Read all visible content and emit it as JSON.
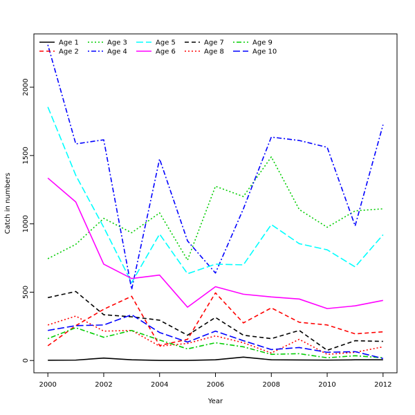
{
  "chart_data": {
    "type": "line",
    "title": "",
    "xlabel": "Year",
    "ylabel": "Catch in numbers",
    "xlim": [
      1999.5,
      2012.5
    ],
    "ylim": [
      -90,
      2390
    ],
    "x_ticks": [
      2000,
      2002,
      2004,
      2006,
      2008,
      2010,
      2012
    ],
    "y_ticks": [
      0,
      500,
      1000,
      1500,
      2000
    ],
    "grid": false,
    "legend_position": "top-left",
    "x": [
      2000,
      2001,
      2002,
      2003,
      2004,
      2005,
      2006,
      2007,
      2008,
      2009,
      2010,
      2011,
      2012
    ],
    "series": [
      {
        "name": "Age 1",
        "color": "#000000",
        "dash": "solid",
        "values": [
          2,
          3,
          18,
          5,
          1,
          1,
          5,
          25,
          5,
          4,
          3,
          5,
          5
        ]
      },
      {
        "name": "Age 2",
        "color": "#ff0000",
        "dash": "dashed",
        "values": [
          108,
          255,
          375,
          470,
          110,
          155,
          495,
          275,
          385,
          280,
          260,
          195,
          210
        ]
      },
      {
        "name": "Age 3",
        "color": "#00cd00",
        "dash": "dotted",
        "values": [
          745,
          850,
          1040,
          935,
          1080,
          735,
          1275,
          1200,
          1490,
          1105,
          975,
          1095,
          1110
        ]
      },
      {
        "name": "Age 4",
        "color": "#0000ff",
        "dash": "dotdash",
        "values": [
          2310,
          1585,
          1615,
          520,
          1475,
          875,
          640,
          1110,
          1635,
          1610,
          1560,
          985,
          1725
        ]
      },
      {
        "name": "Age 5",
        "color": "#00ffff",
        "dash": "longdash",
        "values": [
          1855,
          1355,
          975,
          570,
          925,
          635,
          705,
          700,
          995,
          855,
          810,
          685,
          920
        ]
      },
      {
        "name": "Age 6",
        "color": "#ff00ff",
        "dash": "solid",
        "values": [
          1335,
          1160,
          705,
          600,
          625,
          390,
          540,
          485,
          465,
          450,
          380,
          400,
          440
        ]
      },
      {
        "name": "Age 7",
        "color": "#000000",
        "dash": "dashed",
        "values": [
          460,
          505,
          335,
          320,
          295,
          185,
          315,
          185,
          160,
          220,
          75,
          145,
          140
        ]
      },
      {
        "name": "Age 8",
        "color": "#ff0000",
        "dash": "dotted",
        "values": [
          260,
          325,
          215,
          220,
          105,
          125,
          180,
          130,
          55,
          155,
          45,
          60,
          100
        ]
      },
      {
        "name": "Age 9",
        "color": "#00cd00",
        "dash": "dotdash",
        "values": [
          160,
          240,
          170,
          220,
          150,
          85,
          130,
          100,
          45,
          50,
          20,
          35,
          20
        ]
      },
      {
        "name": "Age 10",
        "color": "#0000ff",
        "dash": "longdash",
        "values": [
          220,
          255,
          260,
          335,
          205,
          135,
          215,
          145,
          80,
          95,
          60,
          65,
          15
        ]
      }
    ]
  }
}
